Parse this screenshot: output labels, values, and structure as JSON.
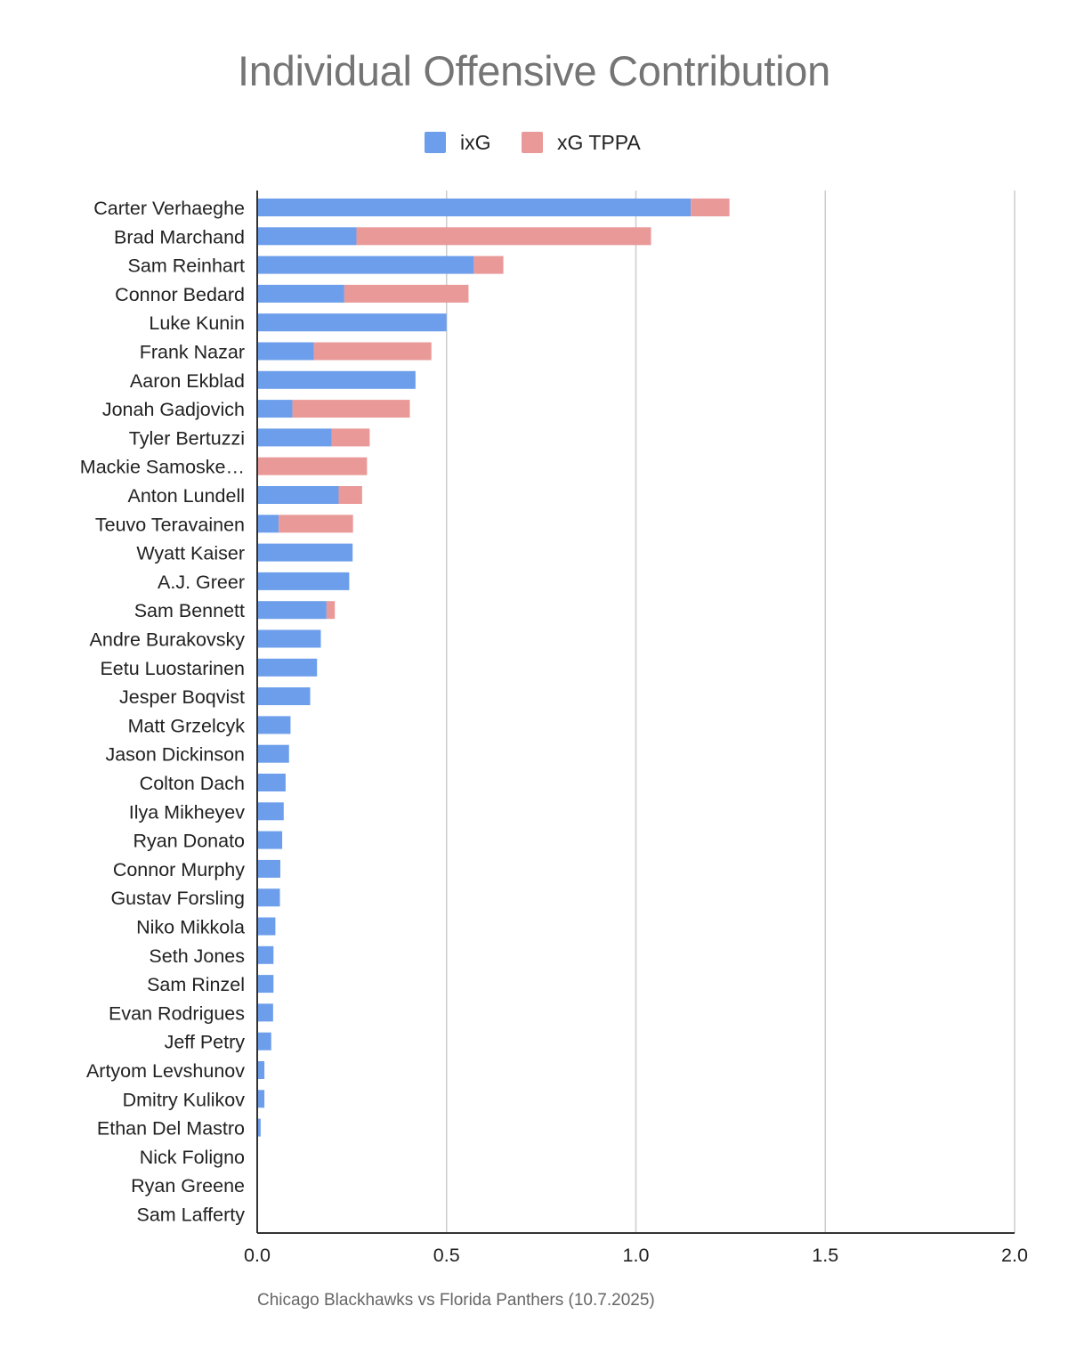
{
  "chart_data": {
    "type": "bar",
    "orientation": "horizontal",
    "stacked": true,
    "title": "Individual Offensive Contribution",
    "xlabel": "Chicago Blackhawks vs Florida Panthers (10.7.2025)",
    "ylabel": "",
    "xlim": [
      0,
      2.0
    ],
    "x_ticks": [
      "0.0",
      "0.5",
      "1.0",
      "1.5",
      "2.0"
    ],
    "x_tick_values": [
      0,
      0.5,
      1.0,
      1.5,
      2.0
    ],
    "grid": true,
    "legend_position": "top",
    "categories": [
      "Carter Verhaeghe",
      "Brad Marchand",
      "Sam Reinhart",
      "Connor Bedard",
      "Luke Kunin",
      "Frank Nazar",
      "Aaron Ekblad",
      "Jonah Gadjovich",
      "Tyler Bertuzzi",
      "Mackie Samoske…",
      "Anton Lundell",
      "Teuvo Teravainen",
      "Wyatt Kaiser",
      "A.J. Greer",
      "Sam Bennett",
      "Andre Burakovsky",
      "Eetu Luostarinen",
      "Jesper Boqvist",
      "Matt Grzelcyk",
      "Jason Dickinson",
      "Colton Dach",
      "Ilya Mikheyev",
      "Ryan Donato",
      "Connor Murphy",
      "Gustav Forsling",
      "Niko Mikkola",
      "Seth Jones",
      "Sam Rinzel",
      "Evan Rodrigues",
      "Jeff Petry",
      "Artyom Levshunov",
      "Dmitry Kulikov",
      "Ethan Del Mastro",
      "Nick Foligno",
      "Ryan Greene",
      "Sam Lafferty"
    ],
    "series": [
      {
        "name": "ixG",
        "color": "#6d9eeb",
        "values": [
          1.145,
          0.262,
          0.572,
          0.23,
          0.5,
          0.15,
          0.418,
          0.093,
          0.197,
          0.0,
          0.215,
          0.057,
          0.252,
          0.243,
          0.183,
          0.168,
          0.158,
          0.14,
          0.088,
          0.084,
          0.075,
          0.07,
          0.066,
          0.061,
          0.06,
          0.048,
          0.043,
          0.043,
          0.042,
          0.037,
          0.019,
          0.019,
          0.009,
          0.0,
          0.0,
          0.0
        ]
      },
      {
        "name": "xG TPPA",
        "color": "#ea9999",
        "values": [
          0.102,
          0.778,
          0.078,
          0.328,
          0.0,
          0.31,
          0.0,
          0.31,
          0.1,
          0.29,
          0.062,
          0.196,
          0.0,
          0.0,
          0.022,
          0.0,
          0.0,
          0.0,
          0.0,
          0.0,
          0.0,
          0.0,
          0.0,
          0.0,
          0.0,
          0.0,
          0.0,
          0.0,
          0.0,
          0.0,
          0.0,
          0.0,
          0.0,
          0.0,
          0.0,
          0.0
        ]
      }
    ]
  }
}
